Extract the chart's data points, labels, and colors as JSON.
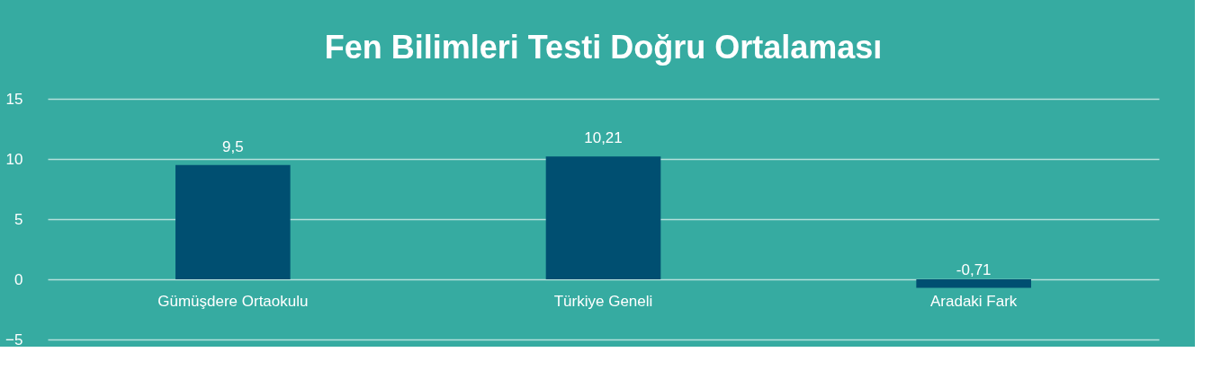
{
  "chart_data": {
    "type": "bar",
    "title": "Fen Bilimleri Testi Doğru Ortalaması",
    "categories": [
      "Gümüşdere Ortaokulu",
      "Türkiye Geneli",
      "Aradaki Fark"
    ],
    "values": [
      9.5,
      10.21,
      -0.71
    ],
    "value_labels": [
      "9,5",
      "10,21",
      "-0,71"
    ],
    "color": "#004f71",
    "ylim": [
      -5,
      15
    ],
    "yticks": [
      -5,
      0,
      5,
      10,
      15
    ],
    "grid": "y"
  }
}
